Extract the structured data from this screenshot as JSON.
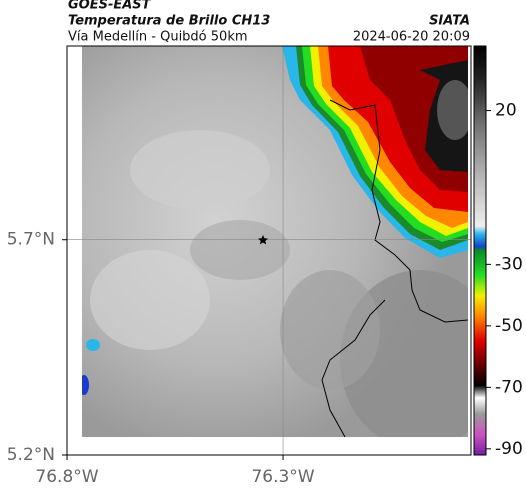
{
  "header": {
    "satellite": "GOES-EAST",
    "product": "Temperatura de Brillo CH13",
    "agency": "SIATA",
    "region": "Vía Medellín - Quibdó 50km",
    "datetime": "2024-06-20 20:09"
  },
  "map": {
    "xlim": [
      -76.8,
      -75.865
    ],
    "ylim": [
      5.2,
      6.15
    ],
    "xticks": [
      {
        "value": -76.8,
        "label": "76.8°W"
      },
      {
        "value": -76.3,
        "label": "76.3°W"
      }
    ],
    "yticks": [
      {
        "value": 5.2,
        "label": "5.2°N"
      },
      {
        "value": 5.7,
        "label": "5.7°N"
      }
    ],
    "grid_lines": [
      {
        "lon": -76.3
      },
      {
        "lat": 5.7
      }
    ]
  },
  "colorbar": {
    "lim": [
      -92,
      41
    ],
    "ticks": [
      20,
      -30,
      -50,
      -70,
      -90
    ]
  }
}
